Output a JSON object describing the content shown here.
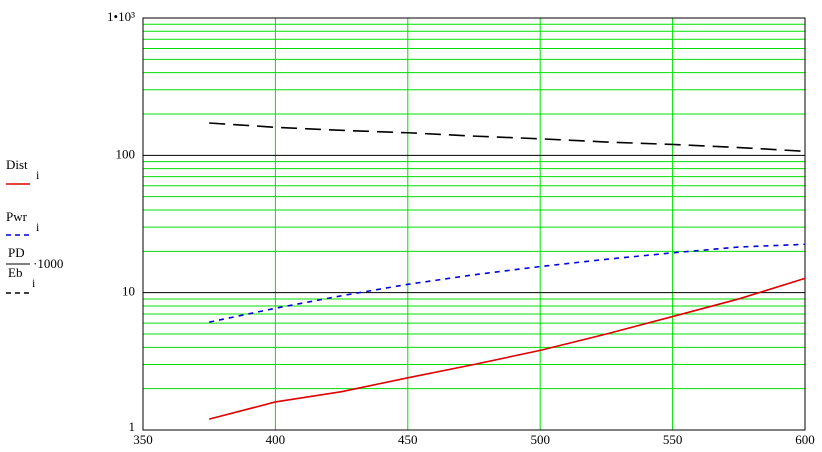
{
  "chart_data": {
    "type": "line",
    "log_y": true,
    "grid": true,
    "grid_color": "#00e000",
    "x": [
      375,
      400,
      425,
      450,
      475,
      500,
      525,
      550,
      575,
      600
    ],
    "xlim": [
      350,
      600
    ],
    "xticks": [
      350,
      400,
      450,
      500,
      550,
      600
    ],
    "ylim": [
      1,
      1000
    ],
    "yticks": [
      1,
      10,
      100,
      {
        "value": 1000,
        "label": "1•10³"
      }
    ],
    "minor_gridlines": [
      2,
      3,
      4,
      5,
      6,
      7,
      8,
      9,
      20,
      30,
      40,
      50,
      60,
      70,
      80,
      90,
      200,
      300,
      400,
      500,
      600,
      700,
      800,
      900
    ],
    "series": [
      {
        "name": "Dist",
        "subscript": "i",
        "color": "#e00000",
        "dash": "none",
        "values": [
          1.2,
          1.6,
          1.9,
          2.4,
          3.0,
          3.8,
          5.0,
          6.7,
          9.0,
          12.7
        ]
      },
      {
        "name": "Pwr",
        "subscript": "i",
        "color": "#0000e0",
        "dash": "5 5",
        "values": [
          6.1,
          7.7,
          9.5,
          11.5,
          13.5,
          15.5,
          17.5,
          19.5,
          21.5,
          22.5
        ]
      },
      {
        "name": "PD",
        "denominator": "Eb",
        "subscript": "i",
        "factor": "·1000",
        "color": "#000000",
        "dash": "16 8",
        "values": [
          172,
          160,
          152,
          146,
          138,
          132,
          125,
          120,
          114,
          107
        ]
      }
    ]
  }
}
